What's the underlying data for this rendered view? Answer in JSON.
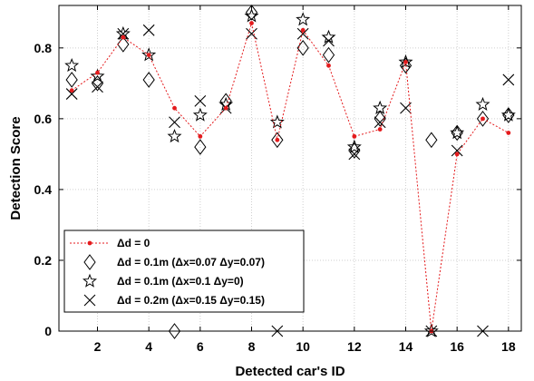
{
  "chart_data": {
    "type": "scatter",
    "xlabel": "Detected car's ID",
    "ylabel": "Detection Score",
    "xlim": [
      0.5,
      18.5
    ],
    "ylim": [
      0,
      0.92
    ],
    "xticks": [
      2,
      4,
      6,
      8,
      10,
      12,
      14,
      16,
      18
    ],
    "yticks": [
      0,
      0.2,
      0.4,
      0.6,
      0.8
    ],
    "xtick_labels": [
      "2",
      "4",
      "6",
      "8",
      "10",
      "12",
      "14",
      "16",
      "18"
    ],
    "ytick_labels": [
      "0",
      "0.2",
      "0.4",
      "0.6",
      "0.8"
    ],
    "grid": true,
    "legend_position": "lower-left",
    "x": [
      1,
      2,
      3,
      4,
      5,
      6,
      7,
      8,
      9,
      10,
      11,
      12,
      13,
      14,
      15,
      16,
      17,
      18
    ],
    "series": [
      {
        "name": "Δd = 0",
        "marker": "dot-line",
        "color": "#e41a1c",
        "values": [
          0.68,
          0.73,
          0.83,
          0.78,
          0.63,
          0.55,
          0.63,
          0.87,
          0.54,
          0.85,
          0.75,
          0.55,
          0.57,
          0.76,
          0.0,
          0.5,
          0.6,
          0.56
        ]
      },
      {
        "name": "Δd = 0.1m (Δx=0.07 Δy=0.07)",
        "marker": "diamond",
        "color": "#000000",
        "values": [
          0.71,
          0.7,
          0.81,
          0.71,
          0.0,
          0.52,
          0.65,
          0.9,
          0.54,
          0.8,
          0.78,
          0.51,
          0.6,
          0.75,
          0.54,
          0.56,
          0.6,
          0.61
        ]
      },
      {
        "name": "Δd = 0.1m (Δx=0.1   Δy=0)",
        "marker": "star",
        "color": "#000000",
        "values": [
          0.75,
          0.72,
          0.84,
          0.78,
          0.55,
          0.61,
          0.64,
          0.89,
          0.59,
          0.88,
          0.83,
          0.52,
          0.63,
          0.76,
          0.0,
          0.56,
          0.64,
          0.61
        ]
      },
      {
        "name": "Δd = 0.2m (Δx=0.15 Δy=0.15)",
        "marker": "x",
        "color": "#000000",
        "values": [
          0.67,
          0.69,
          0.84,
          0.85,
          0.59,
          0.65,
          0.63,
          0.84,
          0.0,
          0.84,
          0.82,
          0.5,
          0.59,
          0.63,
          0.0,
          0.51,
          0.0,
          0.71
        ]
      }
    ]
  }
}
